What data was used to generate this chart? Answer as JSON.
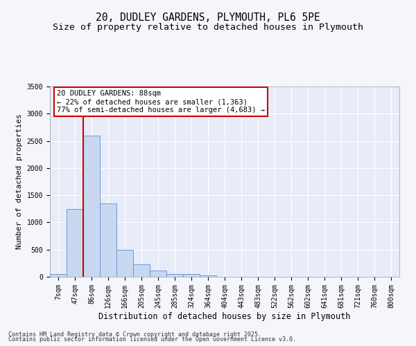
{
  "title_line1": "20, DUDLEY GARDENS, PLYMOUTH, PL6 5PE",
  "title_line2": "Size of property relative to detached houses in Plymouth",
  "xlabel": "Distribution of detached houses by size in Plymouth",
  "ylabel": "Number of detached properties",
  "categories": [
    "7sqm",
    "47sqm",
    "86sqm",
    "126sqm",
    "166sqm",
    "205sqm",
    "245sqm",
    "285sqm",
    "324sqm",
    "364sqm",
    "404sqm",
    "443sqm",
    "483sqm",
    "522sqm",
    "562sqm",
    "602sqm",
    "641sqm",
    "681sqm",
    "721sqm",
    "760sqm",
    "800sqm"
  ],
  "values": [
    50,
    1250,
    2600,
    1350,
    500,
    225,
    110,
    50,
    50,
    30,
    0,
    0,
    0,
    0,
    0,
    0,
    0,
    0,
    0,
    0,
    0
  ],
  "bar_color": "#c8d8f0",
  "bar_edge_color": "#5b8dd9",
  "plot_bg_color": "#e8ecf8",
  "fig_bg_color": "#f4f6fc",
  "grid_color": "#ffffff",
  "vline_color": "#cc0000",
  "vline_index": 2,
  "annotation_text": "20 DUDLEY GARDENS: 88sqm\n← 22% of detached houses are smaller (1,363)\n77% of semi-detached houses are larger (4,683) →",
  "annotation_box_color": "#ffffff",
  "annotation_edge_color": "#cc0000",
  "ylim": [
    0,
    3500
  ],
  "yticks": [
    0,
    500,
    1000,
    1500,
    2000,
    2500,
    3000,
    3500
  ],
  "footnote_line1": "Contains HM Land Registry data © Crown copyright and database right 2025.",
  "footnote_line2": "Contains public sector information licensed under the Open Government Licence v3.0.",
  "title_fontsize": 10.5,
  "subtitle_fontsize": 9.5,
  "tick_fontsize": 7,
  "ylabel_fontsize": 8,
  "xlabel_fontsize": 8.5,
  "annotation_fontsize": 7.5,
  "footnote_fontsize": 6
}
